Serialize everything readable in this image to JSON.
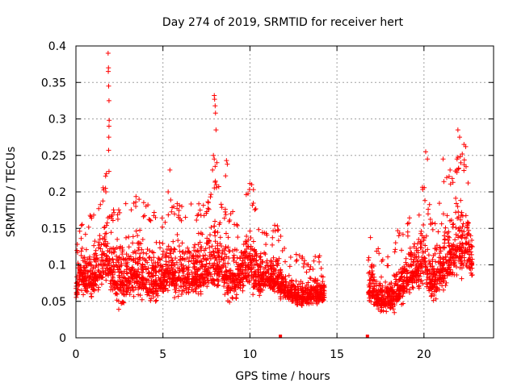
{
  "chart_data": {
    "type": "scatter",
    "title": "Day 274 of 2019, SRMTID for receiver hert",
    "xlabel": "GPS time / hours",
    "ylabel": "SRMTID / TECUs",
    "xlim": [
      0,
      24
    ],
    "ylim": [
      0,
      0.4
    ],
    "xticks": [
      0,
      5,
      10,
      15,
      20
    ],
    "yticks": [
      0,
      0.05,
      0.1,
      0.15,
      0.2,
      0.25,
      0.3,
      0.35,
      0.4
    ],
    "xtick_labels": [
      "0",
      "5",
      "10",
      "15",
      "20"
    ],
    "ytick_labels": [
      "0",
      "0.05",
      "0.1",
      "0.15",
      "0.2",
      "0.25",
      "0.3",
      "0.35",
      "0.4"
    ],
    "grid": true,
    "marker": "+",
    "color": "#ff0000",
    "series": [
      {
        "name": "SRMTID",
        "envelope": [
          [
            0.0,
            0.04,
            0.09
          ],
          [
            0.25,
            0.05,
            0.15
          ],
          [
            0.5,
            0.05,
            0.14
          ],
          [
            1.0,
            0.05,
            0.15
          ],
          [
            1.5,
            0.05,
            0.17
          ],
          [
            1.8,
            0.06,
            0.23
          ],
          [
            2.0,
            0.06,
            0.15
          ],
          [
            2.5,
            0.03,
            0.16
          ],
          [
            3.0,
            0.04,
            0.16
          ],
          [
            3.5,
            0.05,
            0.17
          ],
          [
            4.0,
            0.04,
            0.16
          ],
          [
            4.5,
            0.04,
            0.15
          ],
          [
            5.0,
            0.05,
            0.14
          ],
          [
            5.5,
            0.05,
            0.17
          ],
          [
            6.0,
            0.04,
            0.16
          ],
          [
            6.5,
            0.04,
            0.16
          ],
          [
            7.0,
            0.05,
            0.16
          ],
          [
            7.5,
            0.05,
            0.16
          ],
          [
            8.0,
            0.05,
            0.21
          ],
          [
            8.5,
            0.05,
            0.16
          ],
          [
            9.0,
            0.04,
            0.15
          ],
          [
            9.5,
            0.05,
            0.15
          ],
          [
            10.0,
            0.06,
            0.19
          ],
          [
            10.5,
            0.05,
            0.14
          ],
          [
            11.0,
            0.06,
            0.12
          ],
          [
            11.5,
            0.05,
            0.14
          ],
          [
            12.0,
            0.05,
            0.1
          ],
          [
            12.5,
            0.04,
            0.09
          ],
          [
            13.0,
            0.04,
            0.09
          ],
          [
            13.5,
            0.04,
            0.09
          ],
          [
            14.0,
            0.04,
            0.09
          ],
          [
            14.3,
            0.05,
            0.09
          ],
          [
            16.8,
            0.04,
            0.1
          ],
          [
            17.0,
            0.04,
            0.12
          ],
          [
            17.5,
            0.03,
            0.09
          ],
          [
            18.0,
            0.03,
            0.09
          ],
          [
            18.5,
            0.03,
            0.13
          ],
          [
            19.0,
            0.05,
            0.14
          ],
          [
            19.5,
            0.06,
            0.15
          ],
          [
            20.0,
            0.06,
            0.19
          ],
          [
            20.5,
            0.04,
            0.14
          ],
          [
            21.0,
            0.05,
            0.19
          ],
          [
            21.5,
            0.06,
            0.2
          ],
          [
            22.0,
            0.07,
            0.23
          ],
          [
            22.5,
            0.07,
            0.22
          ],
          [
            22.8,
            0.07,
            0.15
          ]
        ],
        "outliers": [
          [
            1.85,
            0.39
          ],
          [
            1.87,
            0.37
          ],
          [
            1.86,
            0.365
          ],
          [
            1.88,
            0.345
          ],
          [
            1.9,
            0.325
          ],
          [
            1.91,
            0.298
          ],
          [
            1.9,
            0.29
          ],
          [
            1.89,
            0.275
          ],
          [
            1.88,
            0.257
          ],
          [
            1.9,
            0.228
          ],
          [
            1.75,
            0.225
          ],
          [
            1.7,
            0.205
          ],
          [
            1.72,
            0.2
          ],
          [
            5.4,
            0.23
          ],
          [
            5.3,
            0.2
          ],
          [
            7.95,
            0.332
          ],
          [
            7.97,
            0.327
          ],
          [
            8.0,
            0.318
          ],
          [
            8.02,
            0.308
          ],
          [
            8.05,
            0.285
          ],
          [
            7.9,
            0.25
          ],
          [
            7.95,
            0.245
          ],
          [
            8.1,
            0.24
          ],
          [
            8.0,
            0.235
          ],
          [
            7.85,
            0.23
          ],
          [
            8.65,
            0.243
          ],
          [
            8.7,
            0.238
          ],
          [
            8.6,
            0.222
          ],
          [
            10.1,
            0.21
          ],
          [
            10.2,
            0.203
          ],
          [
            21.95,
            0.285
          ],
          [
            22.05,
            0.275
          ],
          [
            22.3,
            0.265
          ],
          [
            22.4,
            0.262
          ],
          [
            22.2,
            0.252
          ],
          [
            20.1,
            0.255
          ],
          [
            20.2,
            0.245
          ],
          [
            21.1,
            0.245
          ],
          [
            21.5,
            0.23
          ],
          [
            21.9,
            0.245
          ]
        ],
        "zeros": [
          11.75,
          16.75
        ]
      }
    ]
  }
}
